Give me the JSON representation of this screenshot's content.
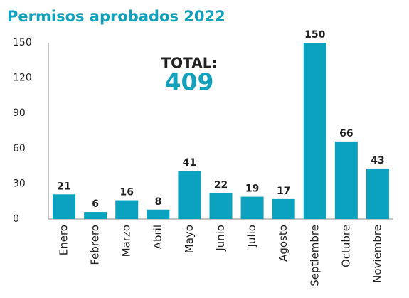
{
  "chart_data": {
    "type": "bar",
    "title": "Permisos aprobados 2022",
    "categories": [
      "Enero",
      "Febrero",
      "Marzo",
      "Abril",
      "Mayo",
      "Junio",
      "Julio",
      "Agosto",
      "Septiembre",
      "Octubre",
      "Noviembre"
    ],
    "values": [
      21,
      6,
      16,
      8,
      41,
      22,
      19,
      17,
      150,
      66,
      43
    ],
    "color": "#0aa2bf",
    "ylim": [
      0,
      150
    ],
    "yticks": [
      0,
      30,
      60,
      90,
      120,
      150
    ],
    "grid": false,
    "total_label": "TOTAL:",
    "total": 409
  }
}
